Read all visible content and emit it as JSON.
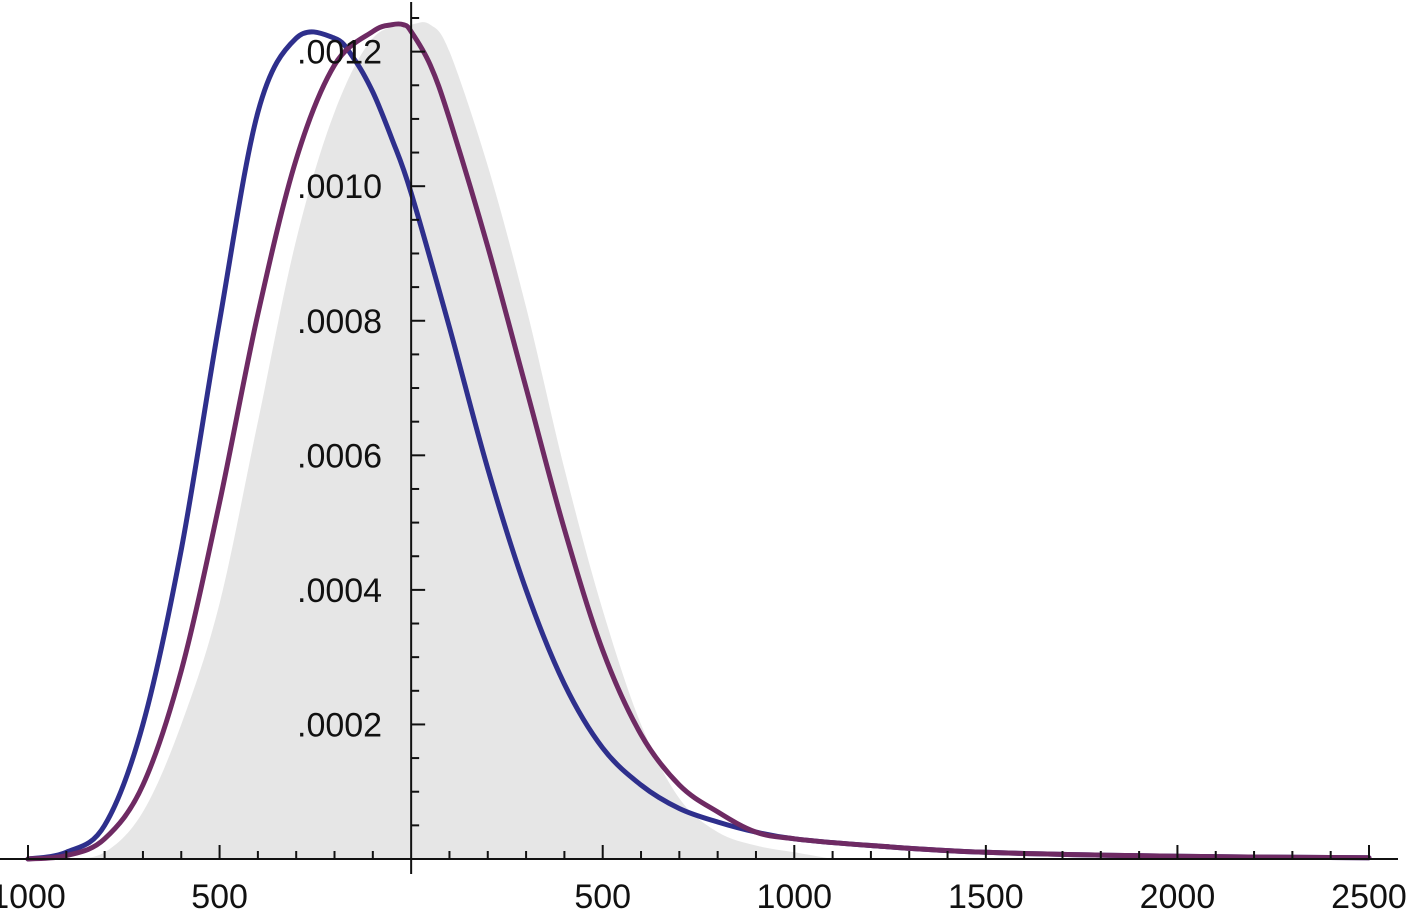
{
  "chart_data": {
    "type": "line",
    "title": "",
    "xlabel": "",
    "ylabel": "",
    "xlim": [
      -1000,
      2500
    ],
    "ylim": [
      0,
      0.00125
    ],
    "grid": false,
    "legend": "none",
    "x_ticks": [
      {
        "value": -1000,
        "label": "1000"
      },
      {
        "value": -500,
        "label": "500"
      },
      {
        "value": 500,
        "label": "500"
      },
      {
        "value": 1000,
        "label": "1000"
      },
      {
        "value": 1500,
        "label": "1500"
      },
      {
        "value": 2000,
        "label": "2000"
      },
      {
        "value": 2500,
        "label": "2500"
      }
    ],
    "y_ticks": [
      {
        "value": 0.0002,
        "label": ".0002"
      },
      {
        "value": 0.0004,
        "label": ".0004"
      },
      {
        "value": 0.0006,
        "label": ".0006"
      },
      {
        "value": 0.0008,
        "label": ".0008"
      },
      {
        "value": 0.001,
        "label": ".0010"
      },
      {
        "value": 0.0012,
        "label": ".0012"
      }
    ],
    "shaded_area": {
      "color": "#e6e6e6",
      "x": [
        -1000,
        -900,
        -800,
        -700,
        -600,
        -500,
        -400,
        -300,
        -200,
        -100,
        0,
        50,
        100,
        200,
        300,
        400,
        500,
        600,
        700,
        800,
        900,
        1000,
        1100
      ],
      "y": [
        0,
        0,
        1e-05,
        7e-05,
        0.0002,
        0.00038,
        0.00065,
        0.00092,
        0.00111,
        0.00122,
        0.00124,
        0.00124,
        0.0012,
        0.00103,
        0.00082,
        0.00058,
        0.00037,
        0.0002,
        9e-05,
        4e-05,
        2e-05,
        1e-05,
        0
      ]
    },
    "series": [
      {
        "color": "#2e2f8c",
        "x": [
          -1000,
          -900,
          -800,
          -700,
          -600,
          -500,
          -400,
          -300,
          -200,
          -150,
          -100,
          -50,
          0,
          100,
          200,
          300,
          400,
          500,
          600,
          700,
          800,
          900,
          1000,
          1200,
          1500,
          2000,
          2500
        ],
        "y": [
          0,
          1e-05,
          5e-05,
          0.0002,
          0.00046,
          0.0008,
          0.00111,
          0.00122,
          0.00122,
          0.00119,
          0.00114,
          0.00107,
          0.00099,
          0.00079,
          0.00058,
          0.0004,
          0.00026,
          0.000165,
          0.00011,
          7.5e-05,
          5.5e-05,
          4e-05,
          3e-05,
          2e-05,
          1e-05,
          4e-06,
          2e-06
        ]
      },
      {
        "color": "#6e2a63",
        "x": [
          -1000,
          -900,
          -800,
          -700,
          -600,
          -500,
          -400,
          -300,
          -200,
          -100,
          -50,
          -20,
          0,
          50,
          100,
          200,
          300,
          400,
          500,
          600,
          700,
          800,
          900,
          1000,
          1200,
          1500,
          2000,
          2500
        ],
        "y": [
          0,
          5e-06,
          3e-05,
          0.00011,
          0.00028,
          0.00053,
          0.00081,
          0.00104,
          0.00118,
          0.00123,
          0.00124,
          0.00124,
          0.00123,
          0.00118,
          0.0011,
          0.00091,
          0.0007,
          0.00049,
          0.00031,
          0.000185,
          0.00011,
          7e-05,
          4e-05,
          3e-05,
          2e-05,
          1e-05,
          4e-06,
          2e-06
        ]
      }
    ]
  }
}
